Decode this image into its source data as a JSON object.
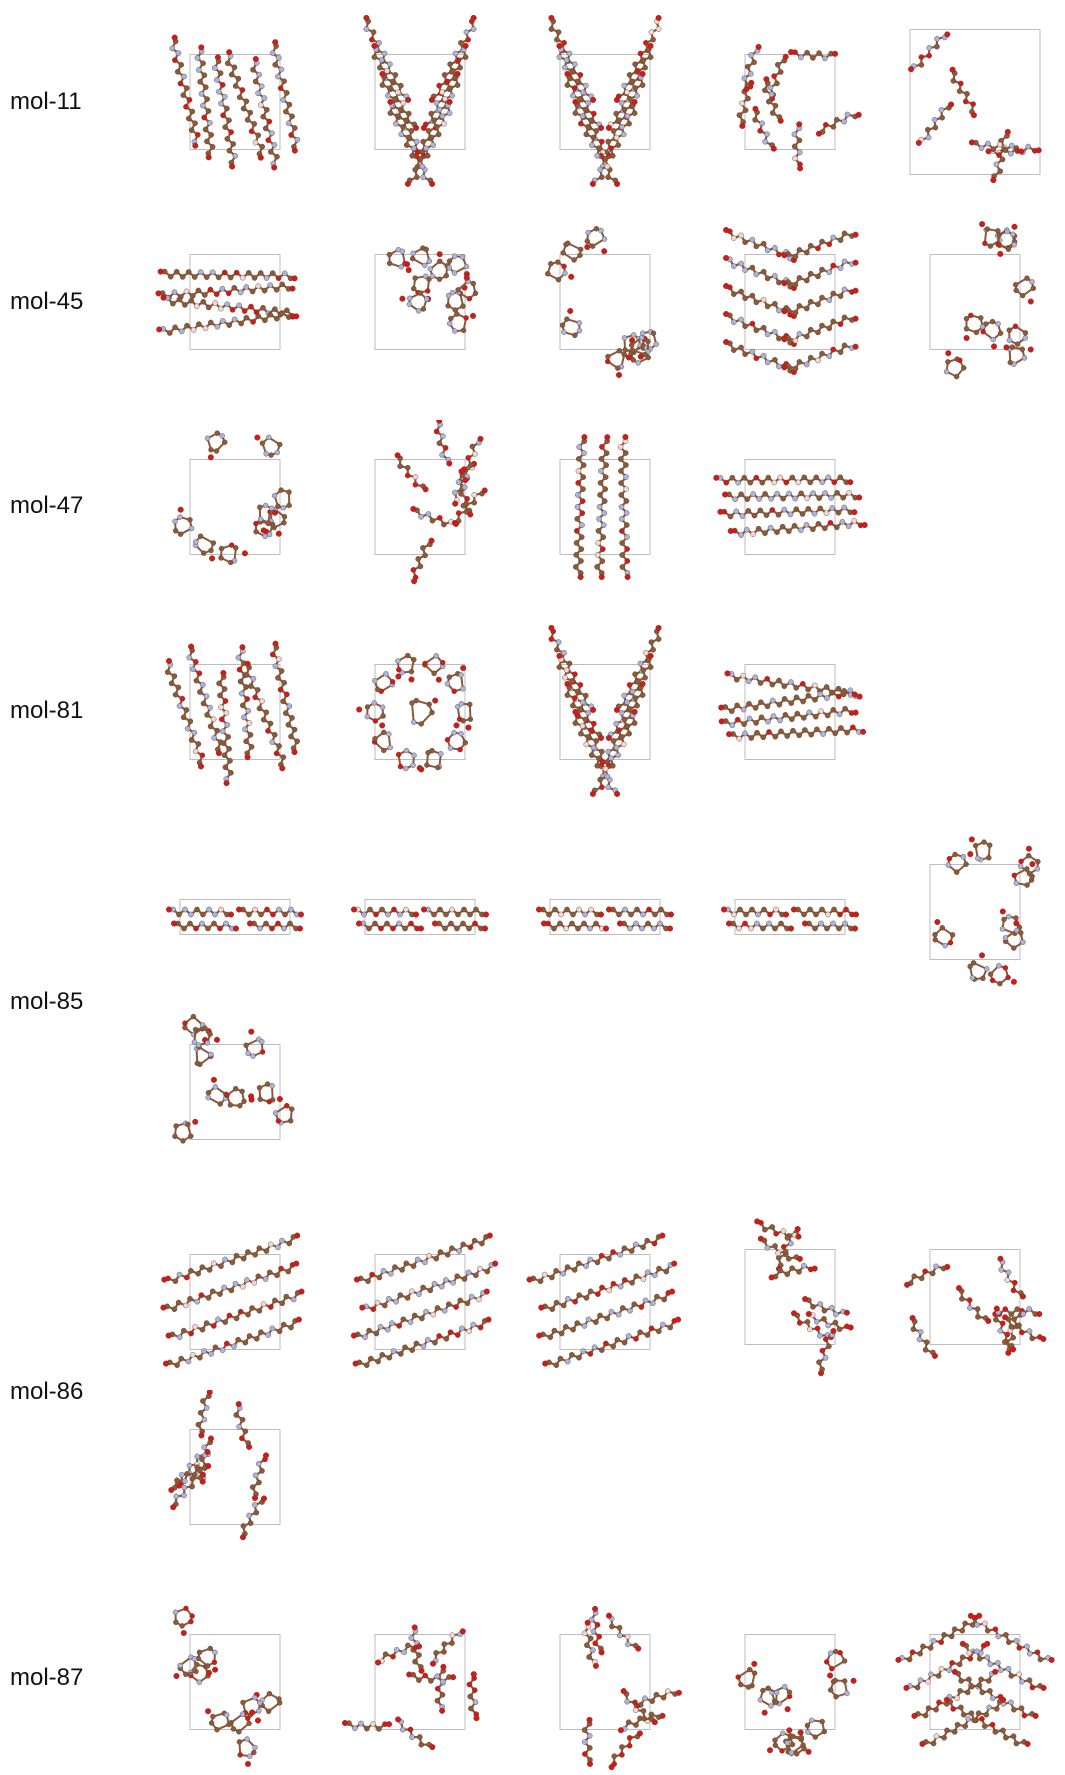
{
  "rows": [
    {
      "label": "mol-11"
    },
    {
      "label": "mol-45"
    },
    {
      "label": "mol-47"
    },
    {
      "label": "mol-81"
    },
    {
      "label": "mol-85"
    },
    {
      "label": "mol-86"
    },
    {
      "label": "mol-87"
    }
  ],
  "colors": {
    "carbon": "#8a5a3c",
    "nitrogen": "#a9b4e0",
    "oxygen": "#d11a1a",
    "hydrogen": "#f2d7d7",
    "cell": "#bdbdbd"
  }
}
